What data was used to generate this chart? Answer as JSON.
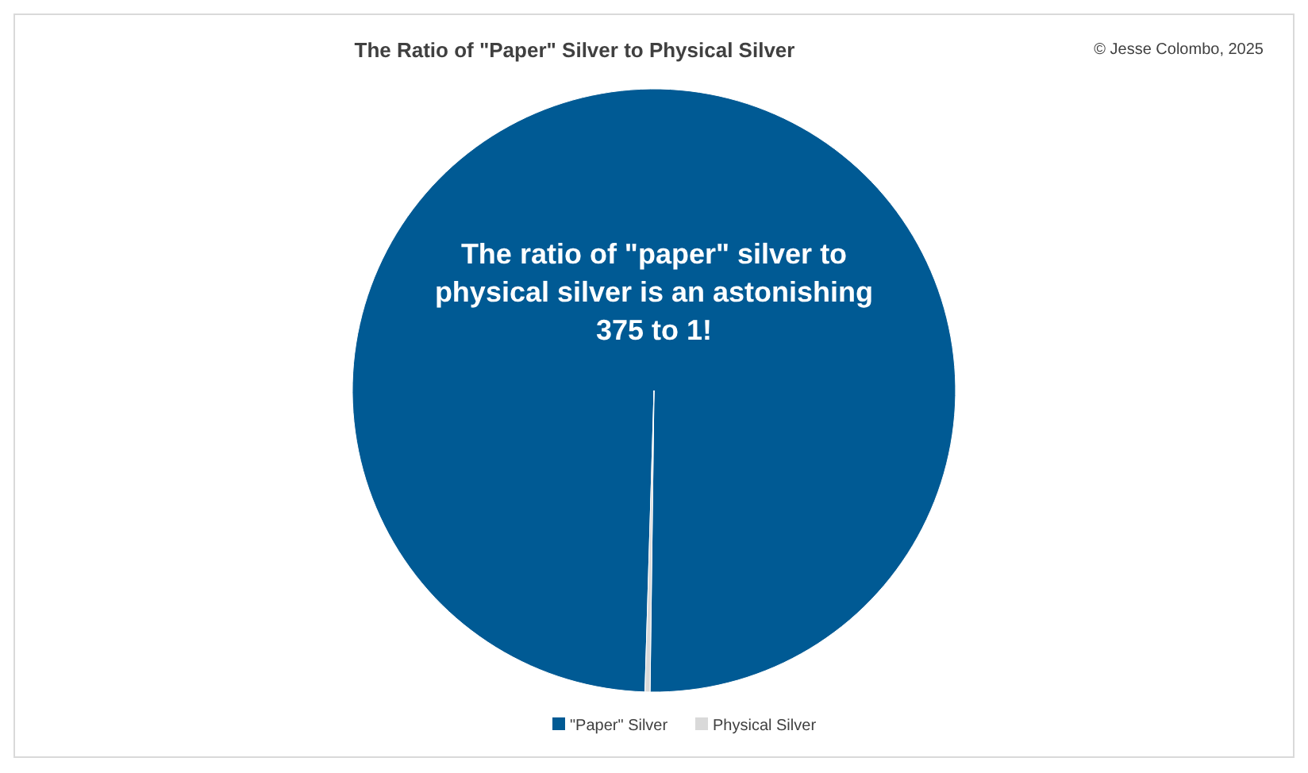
{
  "chart_data": {
    "type": "pie",
    "title": "The Ratio of \"Paper\" Silver to Physical Silver",
    "categories": [
      "\"Paper\" Silver",
      "Physical Silver"
    ],
    "values": [
      99.73,
      0.27
    ],
    "colors": [
      "#005a94",
      "#d9d9d9"
    ],
    "legend": "bottom",
    "annotations": [
      "The ratio of \"paper\" silver to physical silver is an astonishing 375 to 1!",
      "© Jesse Colombo, 2025"
    ]
  }
}
